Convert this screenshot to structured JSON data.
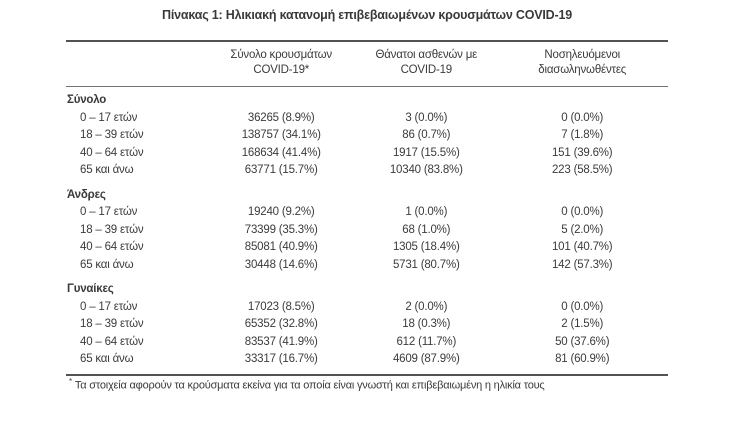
{
  "page": {
    "title": "Πίνακας 1: Ηλικιακή κατανομή επιβεβαιωμένων κρουσμάτων COVID-19"
  },
  "table": {
    "columns": [
      {
        "line1": "Σύνολο κρουσμάτων",
        "line2": "COVID-19*"
      },
      {
        "line1": "Θάνατοι ασθενών με",
        "line2": "COVID-19"
      },
      {
        "line1": "Νοσηλευόμενοι",
        "line2": "διασωληνωθέντες"
      }
    ],
    "sections": [
      {
        "label": "Σύνολο",
        "rows": [
          {
            "label": "0 – 17 ετών",
            "values": [
              "36265 (8.9%)",
              "3 (0.0%)",
              "0 (0.0%)"
            ]
          },
          {
            "label": "18 – 39 ετών",
            "values": [
              "138757 (34.1%)",
              "86 (0.7%)",
              "7 (1.8%)"
            ]
          },
          {
            "label": "40 – 64 ετών",
            "values": [
              "168634 (41.4%)",
              "1917 (15.5%)",
              "151 (39.6%)"
            ]
          },
          {
            "label": "65 και άνω",
            "values": [
              "63771 (15.7%)",
              "10340 (83.8%)",
              "223 (58.5%)"
            ]
          }
        ]
      },
      {
        "label": "Άνδρες",
        "rows": [
          {
            "label": "0 – 17 ετών",
            "values": [
              "19240 (9.2%)",
              "1 (0.0%)",
              "0 (0.0%)"
            ]
          },
          {
            "label": "18 – 39 ετών",
            "values": [
              "73399 (35.3%)",
              "68 (1.0%)",
              "5 (2.0%)"
            ]
          },
          {
            "label": "40 – 64 ετών",
            "values": [
              "85081 (40.9%)",
              "1305 (18.4%)",
              "101 (40.7%)"
            ]
          },
          {
            "label": "65 και άνω",
            "values": [
              "30448 (14.6%)",
              "5731 (80.7%)",
              "142 (57.3%)"
            ]
          }
        ]
      },
      {
        "label": "Γυναίκες",
        "rows": [
          {
            "label": "0 – 17 ετών",
            "values": [
              "17023 (8.5%)",
              "2 (0.0%)",
              "0 (0.0%)"
            ]
          },
          {
            "label": "18 – 39 ετών",
            "values": [
              "65352 (32.8%)",
              "18 (0.3%)",
              "2 (1.5%)"
            ]
          },
          {
            "label": "40 – 64 ετών",
            "values": [
              "83537 (41.9%)",
              "612 (11.7%)",
              "50 (37.6%)"
            ]
          },
          {
            "label": "65 και άνω",
            "values": [
              "33317 (16.7%)",
              "4609 (87.9%)",
              "81 (60.9%)"
            ]
          }
        ]
      }
    ],
    "footnote_marker": "*",
    "footnote": "Τα στοιχεία αφορούν τα κρούσματα εκείνα για τα οποία είναι γνωστή και επιβεβαιωμένη η ηλικία τους"
  },
  "colors": {
    "background": "#ffffff",
    "text": "#3b3b3d",
    "border_heavy": "#535355",
    "border_light": "#737376"
  }
}
